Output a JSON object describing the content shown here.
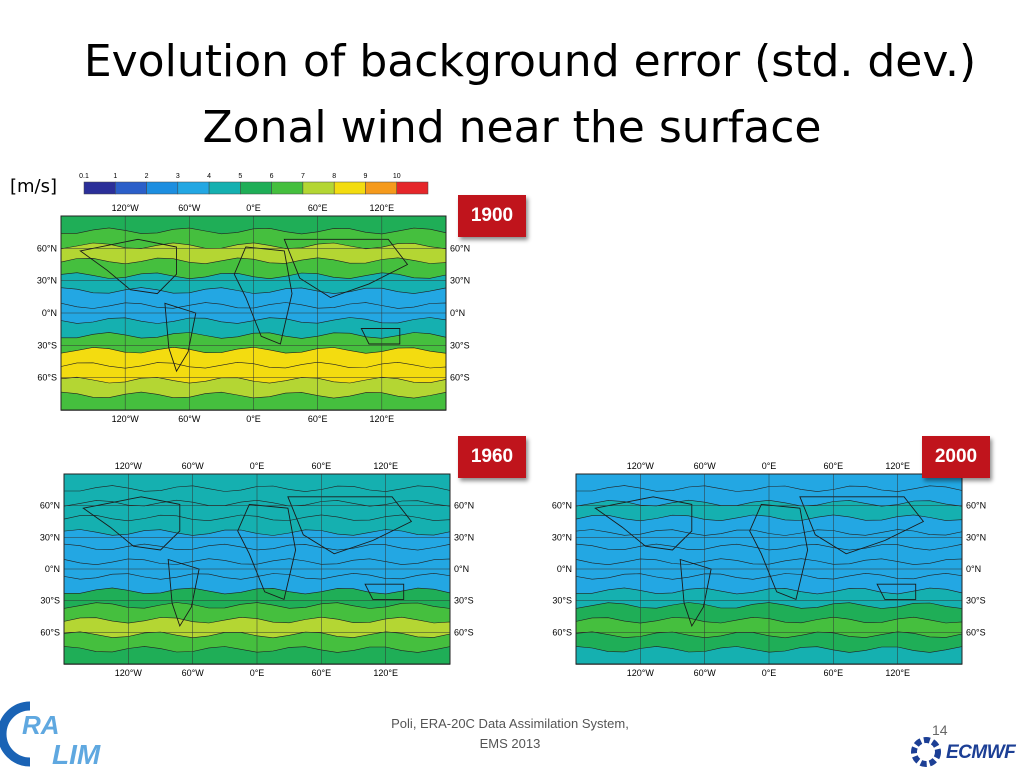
{
  "slide": {
    "title_line1": "Evolution of background error (std. dev.)",
    "title_line2": "Zonal wind near the surface",
    "unit": "[m/s]",
    "footer_line1": "Poli, ERA-20C Data Assimilation System,",
    "footer_line2": "EMS 2013",
    "page_number": "14",
    "logo_left_text": "ERA CLIM",
    "logo_right_text": "ECMWF"
  },
  "chart_data": {
    "type": "heatmap",
    "colorbar": {
      "ticks": [
        "0.1",
        "1",
        "2",
        "3",
        "4",
        "5",
        "6",
        "7",
        "8",
        "9",
        "10"
      ],
      "colors": [
        "#2b2f99",
        "#2b5fc9",
        "#1d8ee0",
        "#23a7e3",
        "#15b0b0",
        "#1fae57",
        "#45bf3e",
        "#b4d633",
        "#f3dc10",
        "#f59a1c",
        "#e5262a"
      ]
    },
    "lon_ticks": [
      "120°W",
      "60°W",
      "0°E",
      "60°E",
      "120°E"
    ],
    "lat_ticks": [
      "60°N",
      "30°N",
      "0°N",
      "30°S",
      "60°S"
    ],
    "lat_values": [
      90,
      75,
      60,
      45,
      30,
      15,
      0,
      -15,
      -30,
      -45,
      -60,
      -75,
      -90
    ],
    "panels": [
      {
        "year": "1900",
        "zonal_band_values": [
          5.5,
          6.0,
          7.5,
          6.0,
          4.5,
          3.5,
          3.5,
          4.5,
          6.5,
          8.0,
          8.5,
          7.5,
          6.0
        ]
      },
      {
        "year": "1960",
        "zonal_band_values": [
          4.0,
          4.5,
          4.5,
          4.0,
          3.2,
          3.0,
          3.0,
          3.3,
          5.0,
          6.5,
          7.2,
          6.0,
          5.5
        ]
      },
      {
        "year": "2000",
        "zonal_band_values": [
          3.5,
          3.6,
          4.0,
          3.5,
          3.0,
          3.0,
          3.0,
          3.2,
          4.3,
          5.0,
          6.0,
          5.0,
          4.5
        ]
      }
    ]
  }
}
